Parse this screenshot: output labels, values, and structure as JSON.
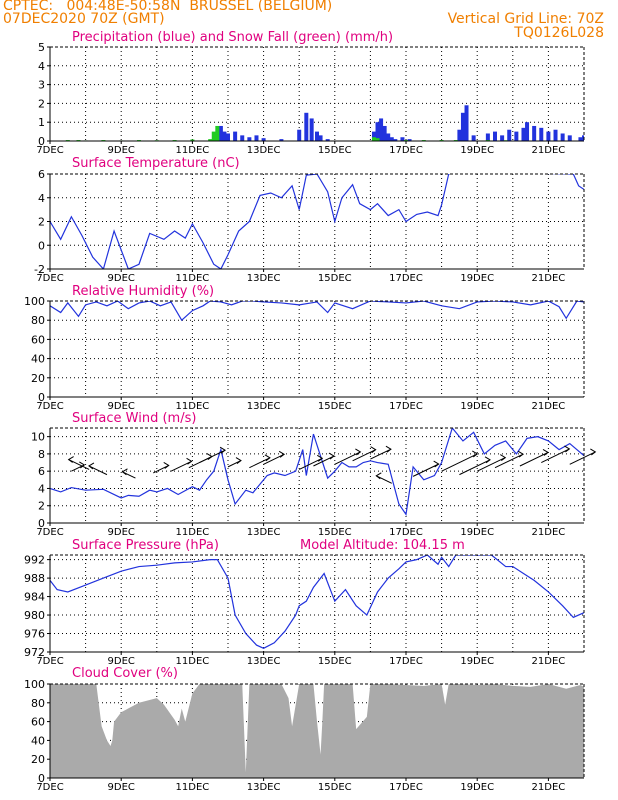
{
  "header": {
    "left_line1": "CPTEC:   004:48E-50:58N  BRUSSEL (BELGIUM)",
    "left_line2": "07DEC2020 70Z (GMT)",
    "right_line1": "Vertical Grid Line: 70Z",
    "right_line2": "TQ0126L028"
  },
  "colors": {
    "header": "#f07f00",
    "title": "#e0007f",
    "line": "#2233dd",
    "snow": "#22cc22",
    "cloud": "#aaaaaa"
  },
  "chart_data": [
    {
      "type": "bar",
      "title": "Precipitation (blue) and Snow Fall (green) (mm/h)",
      "x_tick_labels": [
        "7DEC",
        "9DEC",
        "11DEC",
        "13DEC",
        "15DEC",
        "17DEC",
        "19DEC",
        "21DEC"
      ],
      "x_range_days": [
        0,
        15
      ],
      "ylim": [
        0,
        5
      ],
      "y_ticks": [
        0,
        1,
        2,
        3,
        4,
        5
      ],
      "series": [
        {
          "name": "Precipitation",
          "color": "#2233dd",
          "x": [
            4.7,
            4.8,
            4.9,
            5.0,
            5.2,
            5.4,
            5.6,
            5.8,
            6.0,
            6.5,
            7.0,
            7.2,
            7.35,
            7.5,
            7.6,
            7.8,
            9.1,
            9.2,
            9.3,
            9.4,
            9.5,
            9.6,
            9.7,
            9.9,
            10.1,
            11.5,
            11.6,
            11.7,
            11.9,
            12.3,
            12.5,
            12.7,
            12.9,
            13.1,
            13.3,
            13.4,
            13.6,
            13.8,
            14.0,
            14.2,
            14.4,
            14.6,
            14.9,
            15.0
          ],
          "values": [
            0.3,
            0.8,
            0.5,
            0.4,
            0.5,
            0.3,
            0.2,
            0.3,
            0.15,
            0.1,
            0.6,
            1.5,
            1.2,
            0.5,
            0.3,
            0.1,
            0.5,
            1.0,
            1.2,
            0.8,
            0.4,
            0.2,
            0.1,
            0.2,
            0.1,
            0.6,
            1.5,
            1.9,
            0.3,
            0.4,
            0.5,
            0.3,
            0.6,
            0.5,
            0.7,
            1.0,
            0.8,
            0.7,
            0.5,
            0.6,
            0.4,
            0.3,
            0.2,
            0.3
          ]
        },
        {
          "name": "Snow Fall",
          "color": "#22cc22",
          "x": [
            0.5,
            0.8,
            1.0,
            1.5,
            2.0,
            2.5,
            3.0,
            3.5,
            4.0,
            4.5,
            4.6,
            4.7,
            9.1,
            9.2,
            10.0,
            10.5,
            11.0,
            11.4,
            12.3,
            12.8
          ],
          "values": [
            0.05,
            0.05,
            0.03,
            0.05,
            0.03,
            0.05,
            0.04,
            0.05,
            0.08,
            0.1,
            0.5,
            0.8,
            0.2,
            0.15,
            0.05,
            0.05,
            0.05,
            0.05,
            0.05,
            0.04
          ]
        }
      ]
    },
    {
      "type": "line",
      "title": "Surface Temperature (nC)",
      "x_tick_labels": [
        "7DEC",
        "9DEC",
        "11DEC",
        "13DEC",
        "15DEC",
        "17DEC",
        "19DEC",
        "21DEC"
      ],
      "x_range_days": [
        0,
        15
      ],
      "ylim": [
        -2,
        6
      ],
      "y_ticks": [
        -2,
        0,
        2,
        4,
        6
      ],
      "x": [
        0,
        0.3,
        0.6,
        0.9,
        1.2,
        1.5,
        1.8,
        2.2,
        2.5,
        2.8,
        3.2,
        3.5,
        3.8,
        4.0,
        4.3,
        4.6,
        4.8,
        5.0,
        5.3,
        5.6,
        5.9,
        6.2,
        6.5,
        6.8,
        7.0,
        7.2,
        7.5,
        7.8,
        8.0,
        8.2,
        8.5,
        8.7,
        9.0,
        9.2,
        9.5,
        9.8,
        10.0,
        10.3,
        10.6,
        10.9,
        11.0,
        11.2,
        11.4,
        14.7,
        14.85,
        15.0
      ],
      "values": [
        2.0,
        0.5,
        2.4,
        0.8,
        -1.0,
        -2.0,
        1.2,
        -2.0,
        -1.6,
        1.0,
        0.5,
        1.2,
        0.6,
        1.8,
        0.2,
        -1.6,
        -2.0,
        -0.8,
        1.2,
        2.0,
        4.2,
        4.4,
        4.0,
        5.0,
        3.0,
        5.9,
        6.0,
        4.5,
        2.0,
        4.0,
        5.1,
        3.5,
        3.0,
        3.5,
        2.5,
        3.0,
        2.0,
        2.6,
        2.8,
        2.5,
        3.4,
        6.0,
        6.2,
        6.0,
        5.0,
        4.7
      ]
    },
    {
      "type": "line",
      "title": "Relative Humidity (%)",
      "x_tick_labels": [
        "7DEC",
        "9DEC",
        "11DEC",
        "13DEC",
        "15DEC",
        "17DEC",
        "19DEC",
        "21DEC"
      ],
      "x_range_days": [
        0,
        15
      ],
      "ylim": [
        0,
        100
      ],
      "y_ticks": [
        0,
        20,
        40,
        60,
        80,
        100
      ],
      "x": [
        0,
        0.3,
        0.5,
        0.8,
        1.0,
        1.3,
        1.6,
        1.9,
        2.2,
        2.5,
        2.8,
        3.1,
        3.4,
        3.7,
        4.0,
        4.3,
        4.5,
        4.8,
        5.1,
        5.4,
        5.7,
        6.0,
        6.5,
        7.0,
        7.5,
        7.8,
        8.0,
        8.5,
        9.0,
        9.5,
        10.0,
        10.5,
        11.0,
        11.5,
        12.0,
        12.5,
        13.0,
        13.5,
        14.0,
        14.3,
        14.5,
        14.8,
        15.0
      ],
      "values": [
        95,
        88,
        98,
        84,
        96,
        99,
        95,
        100,
        92,
        98,
        100,
        95,
        99,
        80,
        90,
        95,
        100,
        99,
        96,
        100,
        100,
        99,
        98,
        96,
        99,
        88,
        98,
        92,
        100,
        99,
        98,
        100,
        95,
        92,
        99,
        100,
        99,
        96,
        100,
        94,
        82,
        100,
        99
      ]
    },
    {
      "type": "line",
      "title": "Surface Wind (m/s)",
      "x_tick_labels": [
        "7DEC",
        "9DEC",
        "11DEC",
        "13DEC",
        "15DEC",
        "17DEC",
        "19DEC",
        "21DEC"
      ],
      "x_range_days": [
        0,
        15
      ],
      "ylim": [
        0,
        11
      ],
      "y_ticks": [
        0,
        2,
        4,
        6,
        8,
        10
      ],
      "x": [
        0,
        0.3,
        0.6,
        1.0,
        1.5,
        2.0,
        2.2,
        2.5,
        2.8,
        3.0,
        3.3,
        3.6,
        4.0,
        4.2,
        4.4,
        4.6,
        4.8,
        5.0,
        5.2,
        5.5,
        5.7,
        5.9,
        6.1,
        6.3,
        6.6,
        6.9,
        7.1,
        7.2,
        7.4,
        7.8,
        8.0,
        8.2,
        8.4,
        8.6,
        8.8,
        9.0,
        9.2,
        9.5,
        9.8,
        10.0,
        10.2,
        10.5,
        10.8,
        11.0,
        11.3,
        11.6,
        11.9,
        12.2,
        12.5,
        12.8,
        13.1,
        13.4,
        13.7,
        14.0,
        14.3,
        14.6,
        15.0
      ],
      "values": [
        4.0,
        3.6,
        4.1,
        3.8,
        3.9,
        2.9,
        3.2,
        3.1,
        3.8,
        3.6,
        4.0,
        3.3,
        4.2,
        3.8,
        5.0,
        6.0,
        8.5,
        5.0,
        2.2,
        3.8,
        3.5,
        4.5,
        5.5,
        5.8,
        5.5,
        6.0,
        8.5,
        5.5,
        10.3,
        5.2,
        6.0,
        7.0,
        6.5,
        6.5,
        7.0,
        7.2,
        7.0,
        6.8,
        2.2,
        1.0,
        6.5,
        5.0,
        5.5,
        7.0,
        11.0,
        9.5,
        10.5,
        8.0,
        9.0,
        9.5,
        8.0,
        9.8,
        10.0,
        9.5,
        8.5,
        9.2,
        7.8
      ]
    },
    {
      "type": "line",
      "title": "Surface Pressure (hPa)",
      "annotation": "Model Altitude: 104.15 m",
      "x_tick_labels": [
        "7DEC",
        "9DEC",
        "11DEC",
        "13DEC",
        "15DEC",
        "17DEC",
        "19DEC",
        "21DEC"
      ],
      "x_range_days": [
        0,
        15
      ],
      "ylim": [
        972,
        993
      ],
      "y_ticks": [
        972,
        976,
        980,
        984,
        988,
        992
      ],
      "x": [
        0,
        0.2,
        0.5,
        1.0,
        1.5,
        2.0,
        2.5,
        3.0,
        3.5,
        4.0,
        4.5,
        4.7,
        5.0,
        5.2,
        5.5,
        5.8,
        6.0,
        6.3,
        6.6,
        6.9,
        7.0,
        7.2,
        7.4,
        7.7,
        8.0,
        8.3,
        8.6,
        8.9,
        9.2,
        9.5,
        9.8,
        10.0,
        10.3,
        10.6,
        10.9,
        11.0,
        11.2,
        11.4,
        12.4,
        12.8,
        13.0,
        13.3,
        13.6,
        14.0,
        14.4,
        14.7,
        15.0
      ],
      "values": [
        987.5,
        985.5,
        985.0,
        986.5,
        988.0,
        989.5,
        990.5,
        990.8,
        991.3,
        991.5,
        992.0,
        992.0,
        988.0,
        980.0,
        976.0,
        973.5,
        972.8,
        974.0,
        976.5,
        980.0,
        982.0,
        983.0,
        986.0,
        989.0,
        983.0,
        985.5,
        982.0,
        980.0,
        985.0,
        988.0,
        990.0,
        991.5,
        992.0,
        993.0,
        991.0,
        992.5,
        990.5,
        993.0,
        993.0,
        990.5,
        990.5,
        989.0,
        987.5,
        985.0,
        982.0,
        979.5,
        980.5
      ]
    },
    {
      "type": "area",
      "title": "Cloud Cover (%)",
      "x_tick_labels": [
        "7DEC",
        "9DEC",
        "11DEC",
        "13DEC",
        "15DEC",
        "17DEC",
        "19DEC",
        "21DEC"
      ],
      "x_range_days": [
        0,
        15
      ],
      "ylim": [
        0,
        100
      ],
      "y_ticks": [
        0,
        20,
        40,
        60,
        80,
        100
      ],
      "x": [
        0,
        1.3,
        1.45,
        1.6,
        1.7,
        1.75,
        1.8,
        2.0,
        2.5,
        3.0,
        3.2,
        3.5,
        3.6,
        3.7,
        3.8,
        4.0,
        4.2,
        4.5,
        5.0,
        5.4,
        5.5,
        5.6,
        6.0,
        6.5,
        6.7,
        6.8,
        7.0,
        7.4,
        7.5,
        7.6,
        7.65,
        7.7,
        8.0,
        8.5,
        8.6,
        8.9,
        9.0,
        9.1,
        9.5,
        10.0,
        10.5,
        11.0,
        11.1,
        11.2,
        11.5,
        12.0,
        12.5,
        13.0,
        13.5,
        14.0,
        14.5,
        14.9,
        15.0
      ],
      "values": [
        100,
        100,
        55,
        40,
        34,
        40,
        60,
        70,
        80,
        85,
        78,
        62,
        55,
        74,
        60,
        90,
        100,
        100,
        100,
        100,
        6,
        100,
        100,
        100,
        85,
        55,
        100,
        100,
        60,
        25,
        60,
        100,
        100,
        100,
        52,
        65,
        100,
        100,
        100,
        99,
        98,
        100,
        78,
        100,
        100,
        99,
        100,
        98,
        97,
        100,
        95,
        99,
        97
      ]
    }
  ]
}
